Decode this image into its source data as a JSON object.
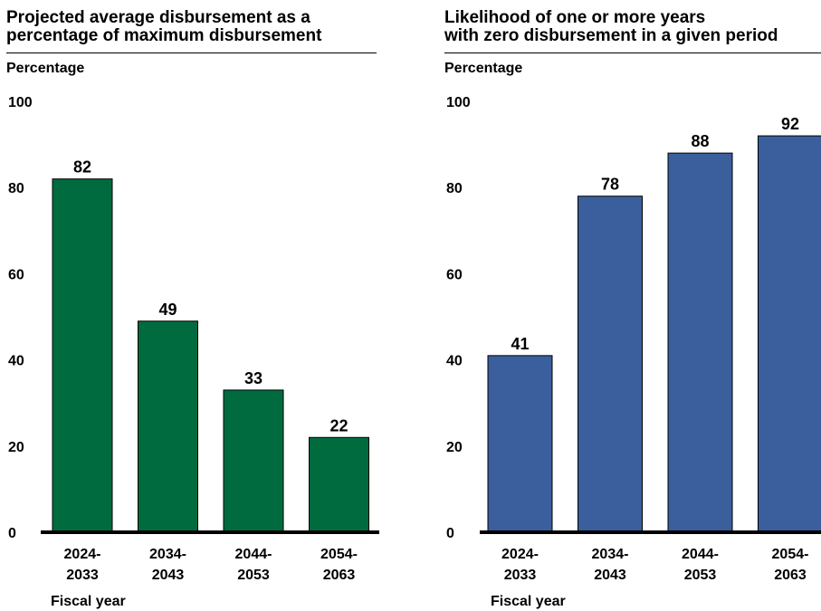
{
  "chart_data": [
    {
      "type": "bar",
      "title": "Projected average disbursement as a percentage of maximum disbursement",
      "title_lines": [
        "Projected average disbursement as a",
        "percentage of maximum disbursement"
      ],
      "ylabel": "Percentage",
      "xlabel": "Fiscal year",
      "categories": [
        [
          "2024-",
          "2033"
        ],
        [
          "2034-",
          "2043"
        ],
        [
          "2044-",
          "2053"
        ],
        [
          "2054-",
          "2063"
        ]
      ],
      "values": [
        82,
        49,
        33,
        22
      ],
      "data_labels": [
        "82",
        "49",
        "33",
        "22"
      ],
      "y_ticks": [
        "0",
        "20",
        "40",
        "60",
        "80",
        "100"
      ],
      "ylim": [
        0,
        100
      ],
      "color": "#006b3f",
      "grid": false,
      "legend": "none"
    },
    {
      "type": "bar",
      "title": "Likelihood of one or more years with zero disbursement in a given period",
      "title_lines": [
        "Likelihood of one or more years",
        "with zero disbursement in a given period"
      ],
      "ylabel": "Percentage",
      "xlabel": "Fiscal year",
      "categories": [
        [
          "2024-",
          "2033"
        ],
        [
          "2034-",
          "2043"
        ],
        [
          "2044-",
          "2053"
        ],
        [
          "2054-",
          "2063"
        ]
      ],
      "values": [
        41,
        78,
        88,
        92
      ],
      "data_labels": [
        "41",
        "78",
        "88",
        "92"
      ],
      "y_ticks": [
        "0",
        "20",
        "40",
        "60",
        "80",
        "100"
      ],
      "ylim": [
        0,
        100
      ],
      "color": "#3a5f9c",
      "grid": false,
      "legend": "none"
    }
  ]
}
